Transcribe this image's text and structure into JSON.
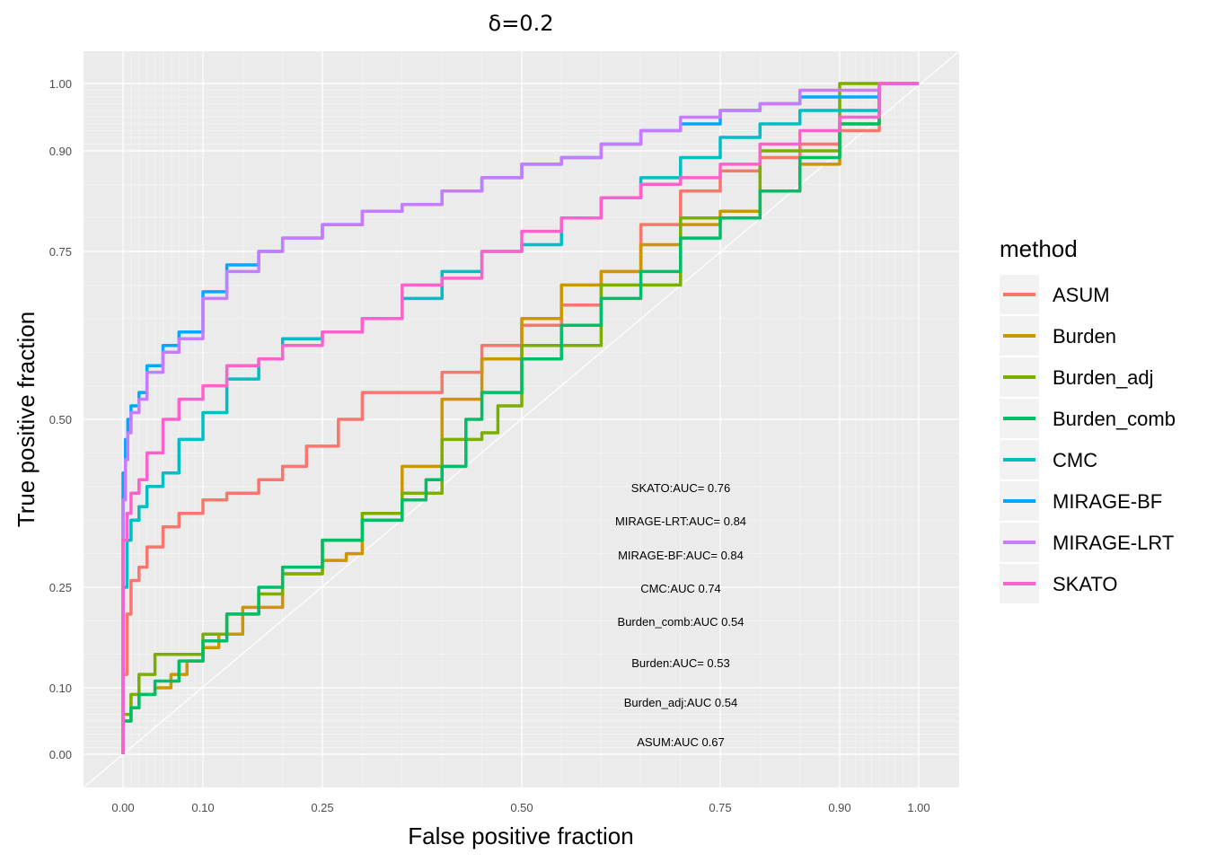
{
  "chart_data": {
    "type": "line",
    "title": "δ=0.2",
    "xlabel": "False positive fraction",
    "ylabel": "True positive fraction",
    "x_ticks": [
      "0.00",
      "0.10",
      "0.25",
      "0.50",
      "0.75",
      "0.90",
      "1.00"
    ],
    "y_ticks": [
      "0.00",
      "0.10",
      "0.25",
      "0.50",
      "0.75",
      "0.90",
      "1.00"
    ],
    "x_tick_values": [
      0,
      0.1,
      0.25,
      0.5,
      0.75,
      0.9,
      1.0
    ],
    "y_tick_values": [
      0,
      0.1,
      0.25,
      0.5,
      0.75,
      0.9,
      1.0
    ],
    "xlim": [
      0,
      1
    ],
    "ylim": [
      0,
      1
    ],
    "grid": true,
    "legend": {
      "title": "method",
      "placement": "right"
    },
    "series": [
      {
        "name": "ASUM",
        "color": "#F8766D",
        "x": [
          0,
          0.005,
          0.01,
          0.02,
          0.03,
          0.05,
          0.07,
          0.1,
          0.13,
          0.17,
          0.2,
          0.23,
          0.27,
          0.3,
          0.35,
          0.4,
          0.45,
          0.5,
          0.55,
          0.6,
          0.65,
          0.7,
          0.75,
          0.8,
          0.85,
          0.9,
          0.95,
          1.0
        ],
        "y": [
          0,
          0.12,
          0.21,
          0.26,
          0.28,
          0.31,
          0.34,
          0.36,
          0.38,
          0.39,
          0.41,
          0.43,
          0.46,
          0.5,
          0.54,
          0.54,
          0.57,
          0.61,
          0.64,
          0.67,
          0.72,
          0.79,
          0.84,
          0.87,
          0.89,
          0.91,
          0.93,
          1.0
        ]
      },
      {
        "name": "Burden",
        "color": "#CD9600",
        "x": [
          0,
          0.01,
          0.02,
          0.04,
          0.06,
          0.08,
          0.1,
          0.12,
          0.15,
          0.2,
          0.25,
          0.28,
          0.3,
          0.35,
          0.4,
          0.45,
          0.5,
          0.55,
          0.6,
          0.65,
          0.7,
          0.75,
          0.8,
          0.85,
          0.9,
          0.95,
          1.0
        ],
        "y": [
          0,
          0.05,
          0.07,
          0.09,
          0.1,
          0.12,
          0.14,
          0.16,
          0.18,
          0.22,
          0.27,
          0.29,
          0.3,
          0.35,
          0.43,
          0.53,
          0.59,
          0.65,
          0.7,
          0.72,
          0.76,
          0.79,
          0.81,
          0.84,
          0.88,
          0.94,
          1.0
        ]
      },
      {
        "name": "Burden_adj",
        "color": "#7CAE00",
        "x": [
          0,
          0.01,
          0.02,
          0.04,
          0.07,
          0.1,
          0.13,
          0.17,
          0.2,
          0.25,
          0.3,
          0.35,
          0.4,
          0.45,
          0.47,
          0.5,
          0.6,
          0.7,
          0.8,
          0.9,
          1.0
        ],
        "y": [
          0,
          0.06,
          0.09,
          0.12,
          0.15,
          0.15,
          0.18,
          0.21,
          0.24,
          0.27,
          0.32,
          0.36,
          0.39,
          0.47,
          0.48,
          0.52,
          0.61,
          0.7,
          0.8,
          0.9,
          1.0
        ]
      },
      {
        "name": "Burden_comb",
        "color": "#00BE67",
        "x": [
          0,
          0.01,
          0.02,
          0.04,
          0.07,
          0.1,
          0.13,
          0.17,
          0.2,
          0.25,
          0.3,
          0.35,
          0.38,
          0.4,
          0.43,
          0.45,
          0.5,
          0.55,
          0.6,
          0.65,
          0.7,
          0.75,
          0.8,
          0.85,
          0.9,
          0.95,
          1.0
        ],
        "y": [
          0,
          0.05,
          0.07,
          0.09,
          0.11,
          0.14,
          0.17,
          0.21,
          0.25,
          0.28,
          0.32,
          0.35,
          0.38,
          0.41,
          0.43,
          0.5,
          0.54,
          0.59,
          0.64,
          0.68,
          0.72,
          0.77,
          0.8,
          0.84,
          0.89,
          0.94,
          1.0
        ]
      },
      {
        "name": "CMC",
        "color": "#00BFC4",
        "x": [
          0,
          0.005,
          0.01,
          0.02,
          0.03,
          0.05,
          0.07,
          0.1,
          0.13,
          0.17,
          0.2,
          0.25,
          0.3,
          0.35,
          0.4,
          0.45,
          0.5,
          0.55,
          0.6,
          0.65,
          0.7,
          0.75,
          0.8,
          0.85,
          0.9,
          0.95,
          1.0
        ],
        "y": [
          0,
          0.25,
          0.32,
          0.35,
          0.37,
          0.4,
          0.42,
          0.47,
          0.51,
          0.56,
          0.59,
          0.62,
          0.63,
          0.65,
          0.68,
          0.72,
          0.75,
          0.76,
          0.8,
          0.83,
          0.86,
          0.89,
          0.92,
          0.94,
          0.96,
          0.96,
          1.0
        ]
      },
      {
        "name": "MIRAGE-BF",
        "color": "#00A9FF",
        "x": [
          0,
          0.003,
          0.006,
          0.01,
          0.02,
          0.03,
          0.05,
          0.07,
          0.1,
          0.13,
          0.17,
          0.2,
          0.25,
          0.3,
          0.35,
          0.4,
          0.45,
          0.5,
          0.55,
          0.6,
          0.65,
          0.7,
          0.75,
          0.8,
          0.85,
          0.9,
          0.95,
          1.0
        ],
        "y": [
          0,
          0.42,
          0.47,
          0.5,
          0.52,
          0.54,
          0.58,
          0.61,
          0.63,
          0.69,
          0.73,
          0.75,
          0.77,
          0.79,
          0.81,
          0.82,
          0.84,
          0.86,
          0.88,
          0.89,
          0.91,
          0.93,
          0.94,
          0.96,
          0.97,
          0.98,
          0.98,
          1.0
        ]
      },
      {
        "name": "MIRAGE-LRT",
        "color": "#C77CFF",
        "x": [
          0,
          0.003,
          0.006,
          0.01,
          0.02,
          0.03,
          0.05,
          0.07,
          0.1,
          0.13,
          0.17,
          0.2,
          0.25,
          0.3,
          0.35,
          0.4,
          0.45,
          0.5,
          0.55,
          0.6,
          0.65,
          0.7,
          0.75,
          0.8,
          0.85,
          0.9,
          0.95,
          1.0
        ],
        "y": [
          0,
          0.38,
          0.44,
          0.48,
          0.51,
          0.53,
          0.57,
          0.6,
          0.62,
          0.68,
          0.72,
          0.75,
          0.77,
          0.79,
          0.81,
          0.82,
          0.84,
          0.86,
          0.88,
          0.89,
          0.91,
          0.93,
          0.95,
          0.96,
          0.97,
          0.99,
          0.99,
          1.0
        ]
      },
      {
        "name": "SKATO",
        "color": "#FF61CC",
        "x": [
          0,
          0.005,
          0.01,
          0.02,
          0.03,
          0.05,
          0.07,
          0.1,
          0.13,
          0.17,
          0.2,
          0.25,
          0.3,
          0.35,
          0.4,
          0.45,
          0.5,
          0.55,
          0.6,
          0.65,
          0.7,
          0.75,
          0.8,
          0.85,
          0.9,
          0.95,
          1.0
        ],
        "y": [
          0,
          0.32,
          0.36,
          0.39,
          0.41,
          0.45,
          0.5,
          0.53,
          0.55,
          0.58,
          0.59,
          0.61,
          0.63,
          0.65,
          0.7,
          0.71,
          0.75,
          0.78,
          0.8,
          0.83,
          0.85,
          0.86,
          0.88,
          0.91,
          0.93,
          0.95,
          1.0
        ]
      }
    ],
    "annotations": [
      "SKATO:AUC= 0.76",
      "MIRAGE-LRT:AUC= 0.84",
      "MIRAGE-BF:AUC= 0.84",
      "CMC:AUC 0.74",
      "Burden_comb:AUC 0.54",
      "Burden:AUC= 0.53",
      "Burden_adj:AUC 0.54",
      "ASUM:AUC 0.67"
    ]
  }
}
